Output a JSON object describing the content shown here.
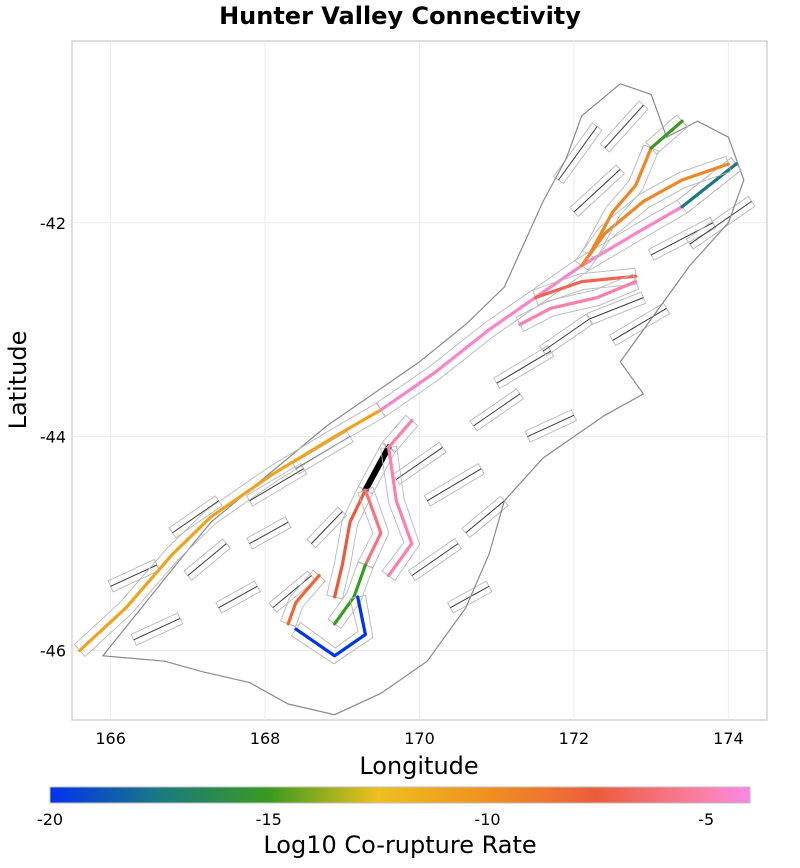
{
  "title": "Hunter Valley Connectivity",
  "x_axis": {
    "label": "Longitude",
    "range": [
      165.5,
      174.5
    ],
    "ticks": [
      {
        "v": 166,
        "label": "166"
      },
      {
        "v": 168,
        "label": "168"
      },
      {
        "v": 170,
        "label": "170"
      },
      {
        "v": 172,
        "label": "172"
      },
      {
        "v": 174,
        "label": "174"
      }
    ]
  },
  "y_axis": {
    "label": "Latitude",
    "range": [
      -46.65,
      -40.3
    ],
    "ticks": [
      {
        "v": -42,
        "label": "-42"
      },
      {
        "v": -44,
        "label": "-44"
      },
      {
        "v": -46,
        "label": "-46"
      }
    ]
  },
  "colorbar": {
    "label": "Log10 Co-rupture Rate",
    "range": [
      -20,
      -4
    ],
    "ticks": [
      {
        "v": -20,
        "label": "-20"
      },
      {
        "v": -15,
        "label": "-15"
      },
      {
        "v": -10,
        "label": "-10"
      },
      {
        "v": -5,
        "label": "-5"
      }
    ],
    "stops": [
      {
        "v": -20,
        "color": "#0033ee"
      },
      {
        "v": -17.5,
        "color": "#1a7a80"
      },
      {
        "v": -15,
        "color": "#3a9a20"
      },
      {
        "v": -12.5,
        "color": "#eec020"
      },
      {
        "v": -10,
        "color": "#f09020"
      },
      {
        "v": -7.5,
        "color": "#ec5c3c"
      },
      {
        "v": -5,
        "color": "#fc80a8"
      },
      {
        "v": -4,
        "color": "#f888e8"
      }
    ]
  },
  "colors": {
    "source_fault": "#000000",
    "coastline": "#8a8a8a",
    "background_fault": "#3a3a3a",
    "fault_box": "#b8b8b8",
    "grid": "#ececec"
  },
  "map": {
    "coastline": [
      [
        165.9,
        -46.05
      ],
      [
        166.4,
        -45.6
      ],
      [
        166.9,
        -45.15
      ],
      [
        167.3,
        -44.8
      ],
      [
        167.8,
        -44.5
      ],
      [
        168.3,
        -44.2
      ],
      [
        168.8,
        -43.9
      ],
      [
        169.4,
        -43.6
      ],
      [
        170.0,
        -43.3
      ],
      [
        170.6,
        -42.95
      ],
      [
        171.1,
        -42.6
      ],
      [
        171.35,
        -42.2
      ],
      [
        171.6,
        -41.8
      ],
      [
        171.9,
        -41.4
      ],
      [
        172.1,
        -41.0
      ],
      [
        172.6,
        -40.7
      ],
      [
        173.0,
        -40.8
      ],
      [
        173.2,
        -41.2
      ],
      [
        173.6,
        -41.05
      ],
      [
        174.0,
        -41.2
      ],
      [
        174.2,
        -41.6
      ],
      [
        174.0,
        -42.0
      ],
      [
        173.5,
        -42.4
      ],
      [
        173.0,
        -42.9
      ],
      [
        172.6,
        -43.3
      ],
      [
        172.9,
        -43.6
      ],
      [
        172.4,
        -43.8
      ],
      [
        171.6,
        -44.2
      ],
      [
        171.1,
        -44.6
      ],
      [
        170.9,
        -45.1
      ],
      [
        170.6,
        -45.6
      ],
      [
        170.1,
        -46.1
      ],
      [
        169.5,
        -46.4
      ],
      [
        168.9,
        -46.6
      ],
      [
        168.3,
        -46.5
      ],
      [
        167.8,
        -46.3
      ],
      [
        167.2,
        -46.2
      ],
      [
        166.7,
        -46.1
      ],
      [
        165.9,
        -46.05
      ]
    ],
    "ruptures": [
      {
        "name": "alpine-fault-south",
        "value": -11,
        "points": [
          [
            165.6,
            -46.0
          ],
          [
            166.2,
            -45.6
          ],
          [
            166.8,
            -45.1
          ],
          [
            167.3,
            -44.75
          ],
          [
            168.1,
            -44.35
          ],
          [
            168.9,
            -44.0
          ],
          [
            169.5,
            -43.75
          ]
        ]
      },
      {
        "name": "alpine-fault-north",
        "value": -4.5,
        "points": [
          [
            169.5,
            -43.75
          ],
          [
            170.2,
            -43.4
          ],
          [
            170.9,
            -43.0
          ],
          [
            171.5,
            -42.7
          ],
          [
            172.1,
            -42.4
          ],
          [
            172.8,
            -42.1
          ],
          [
            173.4,
            -41.85
          ],
          [
            174.1,
            -41.45
          ]
        ]
      },
      {
        "name": "wairau-segment",
        "value": -17.5,
        "points": [
          [
            173.4,
            -41.85
          ],
          [
            174.1,
            -41.45
          ]
        ]
      },
      {
        "name": "awatere-fault",
        "value": -9.5,
        "points": [
          [
            172.1,
            -42.4
          ],
          [
            172.4,
            -42.1
          ],
          [
            172.9,
            -41.8
          ],
          [
            173.4,
            -41.6
          ],
          [
            174.0,
            -41.45
          ]
        ]
      },
      {
        "name": "clarence-fault",
        "value": -7,
        "points": [
          [
            171.5,
            -42.7
          ],
          [
            172.1,
            -42.55
          ],
          [
            172.8,
            -42.5
          ]
        ]
      },
      {
        "name": "hope-fault",
        "value": -5,
        "points": [
          [
            171.3,
            -42.95
          ],
          [
            171.7,
            -42.8
          ],
          [
            172.3,
            -42.7
          ],
          [
            172.8,
            -42.55
          ]
        ]
      },
      {
        "name": "awatere-north",
        "value": -9.5,
        "points": [
          [
            172.2,
            -42.3
          ],
          [
            172.5,
            -41.9
          ],
          [
            172.8,
            -41.65
          ],
          [
            173.0,
            -41.3
          ]
        ]
      },
      {
        "name": "awatere-north-tip",
        "value": -15,
        "points": [
          [
            173.0,
            -41.3
          ],
          [
            173.4,
            -41.05
          ]
        ]
      },
      {
        "name": "hunter-fault-source",
        "value": null,
        "points": [
          [
            169.3,
            -44.5
          ],
          [
            169.6,
            -44.1
          ]
        ]
      },
      {
        "name": "hunter-fault-ext",
        "value": -5,
        "points": [
          [
            169.6,
            -44.1
          ],
          [
            169.9,
            -43.85
          ]
        ]
      },
      {
        "name": "branch-west",
        "value": -7.5,
        "points": [
          [
            169.3,
            -44.5
          ],
          [
            169.1,
            -44.8
          ],
          [
            169.0,
            -45.2
          ],
          [
            168.9,
            -45.5
          ]
        ]
      },
      {
        "name": "branch-east",
        "value": -5,
        "points": [
          [
            169.6,
            -44.1
          ],
          [
            169.7,
            -44.6
          ],
          [
            169.9,
            -45.0
          ],
          [
            169.6,
            -45.3
          ]
        ]
      },
      {
        "name": "branch-mid",
        "value": -6,
        "points": [
          [
            169.3,
            -44.5
          ],
          [
            169.5,
            -44.9
          ],
          [
            169.3,
            -45.2
          ]
        ]
      },
      {
        "name": "south-green",
        "value": -15,
        "points": [
          [
            169.3,
            -45.2
          ],
          [
            169.15,
            -45.5
          ],
          [
            168.9,
            -45.75
          ]
        ]
      },
      {
        "name": "south-blue",
        "value": -20,
        "points": [
          [
            169.2,
            -45.5
          ],
          [
            169.3,
            -45.85
          ],
          [
            168.9,
            -46.05
          ],
          [
            168.4,
            -45.8
          ]
        ]
      },
      {
        "name": "south-orange",
        "value": -8,
        "points": [
          [
            168.7,
            -45.3
          ],
          [
            168.4,
            -45.55
          ],
          [
            168.3,
            -45.75
          ]
        ]
      }
    ],
    "background_faults": [
      [
        [
          166.0,
          -45.4
        ],
        [
          166.6,
          -45.2
        ]
      ],
      [
        [
          166.3,
          -45.9
        ],
        [
          166.9,
          -45.7
        ]
      ],
      [
        [
          167.0,
          -45.3
        ],
        [
          167.5,
          -45.0
        ]
      ],
      [
        [
          167.4,
          -45.6
        ],
        [
          167.9,
          -45.4
        ]
      ],
      [
        [
          167.8,
          -45.0
        ],
        [
          168.3,
          -44.8
        ]
      ],
      [
        [
          168.1,
          -45.6
        ],
        [
          168.6,
          -45.3
        ]
      ],
      [
        [
          168.6,
          -45.0
        ],
        [
          169.0,
          -44.7
        ]
      ],
      [
        [
          169.7,
          -44.4
        ],
        [
          170.3,
          -44.1
        ]
      ],
      [
        [
          169.9,
          -45.3
        ],
        [
          170.5,
          -45.0
        ]
      ],
      [
        [
          170.1,
          -44.6
        ],
        [
          170.8,
          -44.3
        ]
      ],
      [
        [
          170.4,
          -45.6
        ],
        [
          170.9,
          -45.4
        ]
      ],
      [
        [
          170.7,
          -43.9
        ],
        [
          171.3,
          -43.6
        ]
      ],
      [
        [
          171.0,
          -43.5
        ],
        [
          171.7,
          -43.2
        ]
      ],
      [
        [
          171.6,
          -43.2
        ],
        [
          172.2,
          -42.9
        ]
      ],
      [
        [
          172.2,
          -42.9
        ],
        [
          172.9,
          -42.7
        ]
      ],
      [
        [
          172.5,
          -43.1
        ],
        [
          173.2,
          -42.8
        ]
      ],
      [
        [
          172.0,
          -41.9
        ],
        [
          172.6,
          -41.5
        ]
      ],
      [
        [
          171.8,
          -41.6
        ],
        [
          172.3,
          -41.1
        ]
      ],
      [
        [
          172.4,
          -41.3
        ],
        [
          172.9,
          -40.9
        ]
      ],
      [
        [
          173.0,
          -42.3
        ],
        [
          173.8,
          -42.0
        ]
      ],
      [
        [
          173.5,
          -42.2
        ],
        [
          174.3,
          -41.8
        ]
      ],
      [
        [
          167.8,
          -44.6
        ],
        [
          168.5,
          -44.3
        ]
      ],
      [
        [
          168.4,
          -44.3
        ],
        [
          169.1,
          -44.0
        ]
      ],
      [
        [
          166.8,
          -44.9
        ],
        [
          167.4,
          -44.6
        ]
      ],
      [
        [
          170.6,
          -44.9
        ],
        [
          171.1,
          -44.6
        ]
      ],
      [
        [
          171.4,
          -44.0
        ],
        [
          172.0,
          -43.8
        ]
      ]
    ]
  }
}
